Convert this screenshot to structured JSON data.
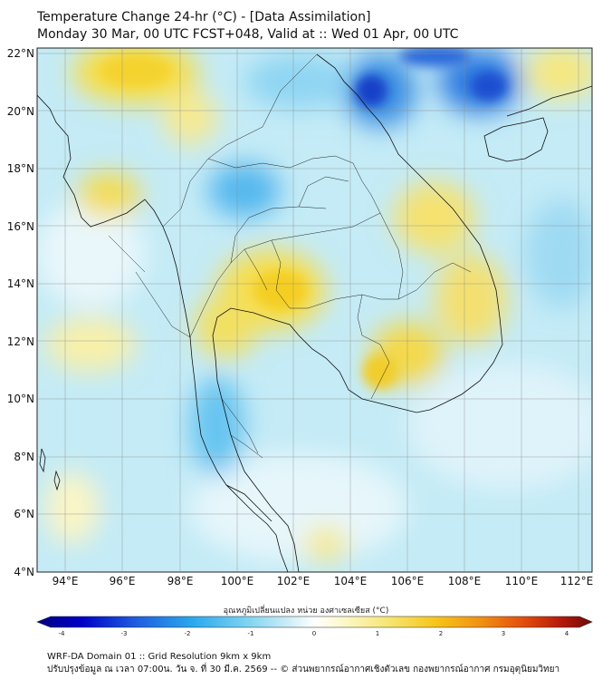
{
  "title": {
    "line1": "Temperature Change 24-hr (°C) - [Data Assimilation]",
    "line2": "Monday 30 Mar, 00 UTC FCST+048, Valid at :: Wed 01 Apr, 00 UTC"
  },
  "map": {
    "lat_labels": [
      "22°N",
      "20°N",
      "18°N",
      "16°N",
      "14°N",
      "12°N",
      "10°N",
      "8°N",
      "6°N",
      "4°N"
    ],
    "lon_labels": [
      "94°E",
      "96°E",
      "98°E",
      "100°E",
      "102°E",
      "104°E",
      "106°E",
      "108°E",
      "110°E",
      "112°E"
    ],
    "lat_range": [
      4,
      22
    ],
    "lon_range": [
      93,
      112.5
    ]
  },
  "colorbar": {
    "label": "อุณหภูมิเปลี่ยนแปลง หน่วย องศาเซลเซียส (°C)",
    "ticks": [
      "-4",
      "-3",
      "-2",
      "-1",
      "0",
      "1",
      "2",
      "3",
      "4"
    ],
    "colors": [
      "#000080",
      "#0000c8",
      "#1f5fe0",
      "#2aa8ee",
      "#7fd4f2",
      "#cfeef8",
      "#ffffff",
      "#fbf7c0",
      "#f5e46a",
      "#f7c41a",
      "#f29012",
      "#e24a0c",
      "#b0160a",
      "#6e0a06"
    ]
  },
  "footer": {
    "line1": "WRF-DA Domain 01 :: Grid Resolution 9km x 9km",
    "line2": "ปรับปรุงข้อมูล ณ เวลา 07:00น. วัน จ. ที่ 30 มี.ค. 2569 -- © ส่วนพยากรณ์อากาศเชิงตัวเลข กองพยากรณ์อากาศ กรมอุตุนิยมวิทยา"
  }
}
